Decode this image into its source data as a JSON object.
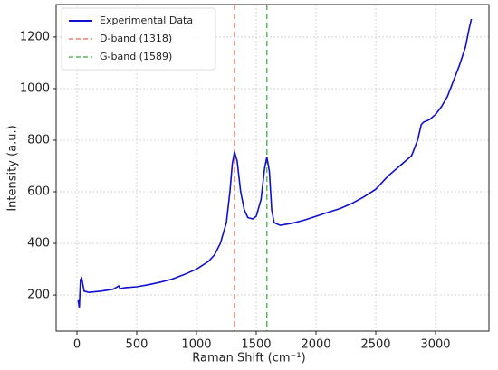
{
  "chart_data": {
    "type": "line",
    "xlabel": "Raman Shift (cm⁻¹)",
    "ylabel": "Intensity (a.u.)",
    "xlim": [
      -174,
      3447
    ],
    "ylim": [
      60,
      1326
    ],
    "xticks": [
      0,
      500,
      1000,
      1500,
      2000,
      2500,
      3000
    ],
    "yticks": [
      200,
      400,
      600,
      800,
      1000,
      1200
    ],
    "grid": true,
    "legend": "upper left",
    "x": [
      10,
      20,
      30,
      40,
      60,
      100,
      200,
      300,
      350,
      360,
      400,
      500,
      600,
      700,
      800,
      900,
      1000,
      1100,
      1150,
      1200,
      1250,
      1280,
      1300,
      1318,
      1340,
      1370,
      1400,
      1430,
      1470,
      1500,
      1540,
      1570,
      1589,
      1610,
      1630,
      1650,
      1700,
      1800,
      1900,
      2000,
      2100,
      2200,
      2300,
      2400,
      2500,
      2600,
      2700,
      2800,
      2850,
      2880,
      2900,
      2950,
      3000,
      3050,
      3100,
      3150,
      3200,
      3250,
      3280,
      3300
    ],
    "series": [
      {
        "name": "Experimental Data",
        "color": "#1010d0",
        "values": [
          180,
          150,
          260,
          265,
          215,
          210,
          215,
          222,
          235,
          225,
          228,
          232,
          240,
          250,
          262,
          280,
          300,
          330,
          355,
          400,
          480,
          600,
          710,
          755,
          720,
          600,
          530,
          500,
          495,
          505,
          570,
          690,
          735,
          680,
          530,
          480,
          470,
          478,
          490,
          505,
          520,
          535,
          555,
          580,
          610,
          660,
          700,
          740,
          800,
          860,
          870,
          880,
          900,
          930,
          970,
          1030,
          1090,
          1160,
          1230,
          1270
        ]
      }
    ],
    "vlines": [
      {
        "name": "D-band (1318)",
        "x": 1318,
        "color": "#f08070"
      },
      {
        "name": "G-band (1589)",
        "x": 1589,
        "color": "#5cb85c"
      }
    ]
  }
}
